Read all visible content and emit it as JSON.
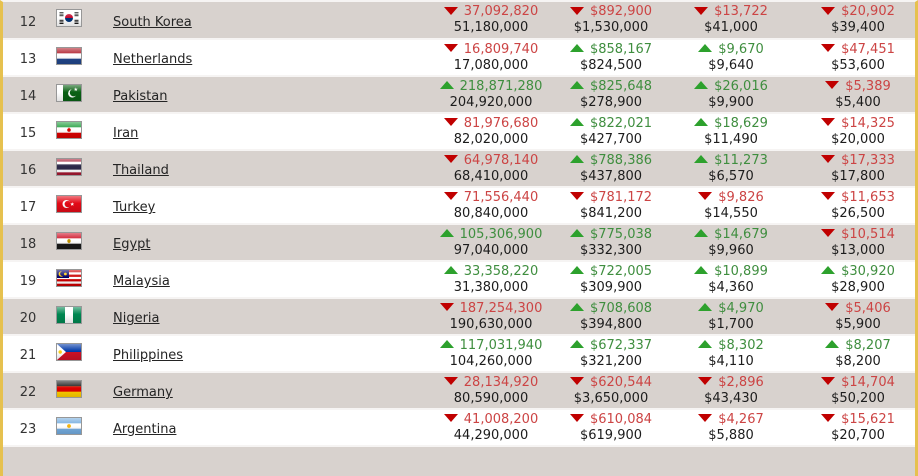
{
  "colors": {
    "accent_border": "#e6c14f",
    "shaded_row": "#d8d2ce",
    "separator": "#f6f4f3",
    "negative_text": "#cc4444",
    "positive_text": "#3f8e3f",
    "negative_arrow": "#c00000",
    "positive_arrow": "#2da12d"
  },
  "icons": {
    "down_arrow": "triangle-down",
    "up_arrow": "triangle-up"
  },
  "rows": [
    {
      "rank": "12",
      "country": "South Korea",
      "flag": "south-korea",
      "cols": [
        {
          "dir": "down",
          "value": "37,092,820",
          "sub": "51,180,000"
        },
        {
          "dir": "down",
          "value": "$892,900",
          "sub": "$1,530,000"
        },
        {
          "dir": "down",
          "value": "$13,722",
          "sub": "$41,000"
        },
        {
          "dir": "down",
          "value": "$20,902",
          "sub": "$39,400"
        }
      ]
    },
    {
      "rank": "13",
      "country": "Netherlands",
      "flag": "netherlands",
      "cols": [
        {
          "dir": "down",
          "value": "16,809,740",
          "sub": "17,080,000"
        },
        {
          "dir": "up",
          "value": "$858,167",
          "sub": "$824,500"
        },
        {
          "dir": "up",
          "value": "$9,670",
          "sub": "$9,640"
        },
        {
          "dir": "down",
          "value": "$47,451",
          "sub": "$53,600"
        }
      ]
    },
    {
      "rank": "14",
      "country": "Pakistan",
      "flag": "pakistan",
      "cols": [
        {
          "dir": "up",
          "value": "218,871,280",
          "sub": "204,920,000"
        },
        {
          "dir": "up",
          "value": "$825,648",
          "sub": "$278,900"
        },
        {
          "dir": "up",
          "value": "$26,016",
          "sub": "$9,900"
        },
        {
          "dir": "down",
          "value": "$5,389",
          "sub": "$5,400"
        }
      ]
    },
    {
      "rank": "15",
      "country": "Iran",
      "flag": "iran",
      "cols": [
        {
          "dir": "down",
          "value": "81,976,680",
          "sub": "82,020,000"
        },
        {
          "dir": "up",
          "value": "$822,021",
          "sub": "$427,700"
        },
        {
          "dir": "up",
          "value": "$18,629",
          "sub": "$11,490"
        },
        {
          "dir": "down",
          "value": "$14,325",
          "sub": "$20,000"
        }
      ]
    },
    {
      "rank": "16",
      "country": "Thailand",
      "flag": "thailand",
      "cols": [
        {
          "dir": "down",
          "value": "64,978,140",
          "sub": "68,410,000"
        },
        {
          "dir": "up",
          "value": "$788,386",
          "sub": "$437,800"
        },
        {
          "dir": "up",
          "value": "$11,273",
          "sub": "$6,570"
        },
        {
          "dir": "down",
          "value": "$17,333",
          "sub": "$17,800"
        }
      ]
    },
    {
      "rank": "17",
      "country": "Turkey",
      "flag": "turkey",
      "cols": [
        {
          "dir": "down",
          "value": "71,556,440",
          "sub": "80,840,000"
        },
        {
          "dir": "down",
          "value": "$781,172",
          "sub": "$841,200"
        },
        {
          "dir": "down",
          "value": "$9,826",
          "sub": "$14,550"
        },
        {
          "dir": "down",
          "value": "$11,653",
          "sub": "$26,500"
        }
      ]
    },
    {
      "rank": "18",
      "country": "Egypt",
      "flag": "egypt",
      "cols": [
        {
          "dir": "up",
          "value": "105,306,900",
          "sub": "97,040,000"
        },
        {
          "dir": "up",
          "value": "$775,038",
          "sub": "$332,300"
        },
        {
          "dir": "up",
          "value": "$14,679",
          "sub": "$9,960"
        },
        {
          "dir": "down",
          "value": "$10,514",
          "sub": "$13,000"
        }
      ]
    },
    {
      "rank": "19",
      "country": "Malaysia",
      "flag": "malaysia",
      "cols": [
        {
          "dir": "up",
          "value": "33,358,220",
          "sub": "31,380,000"
        },
        {
          "dir": "up",
          "value": "$722,005",
          "sub": "$309,900"
        },
        {
          "dir": "up",
          "value": "$10,899",
          "sub": "$4,360"
        },
        {
          "dir": "up",
          "value": "$30,920",
          "sub": "$28,900"
        }
      ]
    },
    {
      "rank": "20",
      "country": "Nigeria",
      "flag": "nigeria",
      "cols": [
        {
          "dir": "down",
          "value": "187,254,300",
          "sub": "190,630,000"
        },
        {
          "dir": "up",
          "value": "$708,608",
          "sub": "$394,800"
        },
        {
          "dir": "up",
          "value": "$4,970",
          "sub": "$1,700"
        },
        {
          "dir": "down",
          "value": "$5,406",
          "sub": "$5,900"
        }
      ]
    },
    {
      "rank": "21",
      "country": "Philippines",
      "flag": "philippines",
      "cols": [
        {
          "dir": "up",
          "value": "117,031,940",
          "sub": "104,260,000"
        },
        {
          "dir": "up",
          "value": "$672,337",
          "sub": "$321,200"
        },
        {
          "dir": "up",
          "value": "$8,302",
          "sub": "$4,110"
        },
        {
          "dir": "up",
          "value": "$8,207",
          "sub": "$8,200"
        }
      ]
    },
    {
      "rank": "22",
      "country": "Germany",
      "flag": "germany",
      "cols": [
        {
          "dir": "down",
          "value": "28,134,920",
          "sub": "80,590,000"
        },
        {
          "dir": "down",
          "value": "$620,544",
          "sub": "$3,650,000"
        },
        {
          "dir": "down",
          "value": "$2,896",
          "sub": "$43,430"
        },
        {
          "dir": "down",
          "value": "$14,704",
          "sub": "$50,200"
        }
      ]
    },
    {
      "rank": "23",
      "country": "Argentina",
      "flag": "argentina",
      "cols": [
        {
          "dir": "down",
          "value": "41,008,200",
          "sub": "44,290,000"
        },
        {
          "dir": "down",
          "value": "$610,084",
          "sub": "$619,900"
        },
        {
          "dir": "down",
          "value": "$4,267",
          "sub": "$5,880"
        },
        {
          "dir": "down",
          "value": "$15,621",
          "sub": "$20,700"
        }
      ]
    }
  ]
}
